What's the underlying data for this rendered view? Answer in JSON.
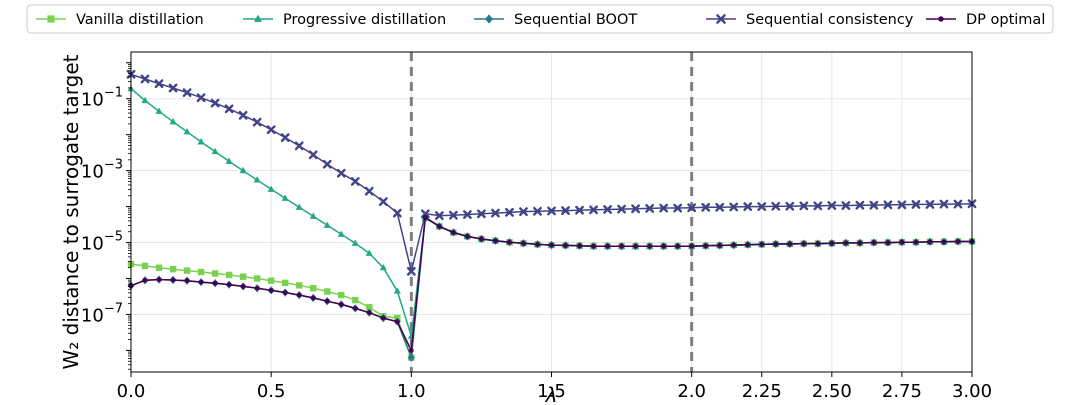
{
  "chart_data": {
    "type": "line",
    "title": "",
    "xlabel": "λ",
    "ylabel": "W₂ distance to surrogate target",
    "xlim": [
      0,
      3.0
    ],
    "ylim_log10": [
      -8.6,
      0.3
    ],
    "y_scale": "log",
    "x_scale": "piecewise-linear",
    "x_ticks": [
      "0.0",
      "0.5",
      "1.0",
      "1.5",
      "2.0",
      "2.25",
      "2.50",
      "2.75",
      "3.00"
    ],
    "x_tick_values": [
      0.0,
      0.5,
      1.0,
      1.5,
      2.0,
      2.25,
      2.5,
      2.75,
      3.0
    ],
    "y_ticks": [
      {
        "base": "10",
        "exp": "−1",
        "value": -1
      },
      {
        "base": "10",
        "exp": "−3",
        "value": -3
      },
      {
        "base": "10",
        "exp": "−5",
        "value": -5
      },
      {
        "base": "10",
        "exp": "−7",
        "value": -7
      }
    ],
    "vlines": [
      1.0,
      2.0
    ],
    "grid": true,
    "legend_position": "top",
    "series": [
      {
        "name": "Vanilla distillation",
        "color": "#7ad151",
        "marker": "square",
        "x": [
          0.0,
          0.05,
          0.1,
          0.15,
          0.2,
          0.25,
          0.3,
          0.35,
          0.4,
          0.45,
          0.5,
          0.55,
          0.6,
          0.65,
          0.7,
          0.75,
          0.8,
          0.85,
          0.9,
          0.95,
          1.0,
          1.05,
          1.1,
          1.15,
          1.2,
          1.25,
          1.3,
          1.35,
          1.4,
          1.45,
          1.5,
          1.55,
          1.6,
          1.65,
          1.7,
          1.75,
          1.8,
          1.85,
          1.9,
          1.95,
          2.0,
          2.05,
          2.1,
          2.15,
          2.2,
          2.25,
          2.3,
          2.35,
          2.4,
          2.45,
          2.5,
          2.55,
          2.6,
          2.65,
          2.7,
          2.75,
          2.8,
          2.85,
          2.9,
          2.95,
          3.0
        ],
        "y_log10": [
          -5.6,
          -5.65,
          -5.7,
          -5.74,
          -5.78,
          -5.82,
          -5.86,
          -5.9,
          -5.95,
          -6.0,
          -6.06,
          -6.12,
          -6.19,
          -6.27,
          -6.36,
          -6.46,
          -6.6,
          -6.8,
          -7.05,
          -7.1,
          -8.2,
          -4.32,
          -4.55,
          -4.72,
          -4.83,
          -4.9,
          -4.95,
          -4.99,
          -5.02,
          -5.05,
          -5.07,
          -5.08,
          -5.09,
          -5.1,
          -5.1,
          -5.1,
          -5.1,
          -5.1,
          -5.1,
          -5.1,
          -5.1,
          -5.09,
          -5.08,
          -5.07,
          -5.06,
          -5.05,
          -5.04,
          -5.04,
          -5.03,
          -5.03,
          -5.02,
          -5.01,
          -5.01,
          -5.0,
          -5.0,
          -4.99,
          -4.99,
          -4.98,
          -4.98,
          -4.97,
          -4.97
        ]
      },
      {
        "name": "Progressive distillation",
        "color": "#22a884",
        "marker": "triangle",
        "x": [
          0.0,
          0.05,
          0.1,
          0.15,
          0.2,
          0.25,
          0.3,
          0.35,
          0.4,
          0.45,
          0.5,
          0.55,
          0.6,
          0.65,
          0.7,
          0.75,
          0.8,
          0.85,
          0.9,
          0.95,
          1.0,
          1.05,
          1.1,
          1.15,
          1.2,
          1.25,
          1.3,
          1.35,
          1.4,
          1.45,
          1.5,
          1.55,
          1.6,
          1.65,
          1.7,
          1.75,
          1.8,
          1.85,
          1.9,
          1.95,
          2.0,
          2.05,
          2.1,
          2.15,
          2.2,
          2.25,
          2.3,
          2.35,
          2.4,
          2.45,
          2.5,
          2.55,
          2.6,
          2.65,
          2.7,
          2.75,
          2.8,
          2.85,
          2.9,
          2.95,
          3.0
        ],
        "y_log10": [
          -0.72,
          -1.05,
          -1.35,
          -1.64,
          -1.92,
          -2.2,
          -2.47,
          -2.74,
          -3.0,
          -3.26,
          -3.52,
          -3.77,
          -4.02,
          -4.27,
          -4.52,
          -4.77,
          -5.02,
          -5.3,
          -5.7,
          -6.35,
          -7.6,
          -4.32,
          -4.55,
          -4.72,
          -4.83,
          -4.9,
          -4.95,
          -4.99,
          -5.02,
          -5.05,
          -5.07,
          -5.08,
          -5.09,
          -5.1,
          -5.1,
          -5.1,
          -5.1,
          -5.1,
          -5.1,
          -5.1,
          -5.1,
          -5.09,
          -5.08,
          -5.07,
          -5.06,
          -5.05,
          -5.04,
          -5.04,
          -5.03,
          -5.03,
          -5.02,
          -5.01,
          -5.01,
          -5.0,
          -5.0,
          -4.99,
          -4.99,
          -4.98,
          -4.98,
          -4.97,
          -4.97
        ]
      },
      {
        "name": "Sequential BOOT",
        "color": "#2a788e",
        "marker": "diamond",
        "x": [
          0.0,
          0.05,
          0.1,
          0.15,
          0.2,
          0.25,
          0.3,
          0.35,
          0.4,
          0.45,
          0.5,
          0.55,
          0.6,
          0.65,
          0.7,
          0.75,
          0.8,
          0.85,
          0.9,
          0.95,
          1.0,
          1.05,
          1.1,
          1.15,
          1.2,
          1.25,
          1.3,
          1.35,
          1.4,
          1.45,
          1.5,
          1.55,
          1.6,
          1.65,
          1.7,
          1.75,
          1.8,
          1.85,
          1.9,
          1.95,
          2.0,
          2.05,
          2.1,
          2.15,
          2.2,
          2.25,
          2.3,
          2.35,
          2.4,
          2.45,
          2.5,
          2.55,
          2.6,
          2.65,
          2.7,
          2.75,
          2.8,
          2.85,
          2.9,
          2.95,
          3.0
        ],
        "y_log10": [
          -6.2,
          -6.05,
          -6.03,
          -6.04,
          -6.06,
          -6.1,
          -6.13,
          -6.17,
          -6.22,
          -6.27,
          -6.33,
          -6.39,
          -6.46,
          -6.54,
          -6.63,
          -6.72,
          -6.83,
          -6.95,
          -7.1,
          -7.2,
          -8.2,
          -4.3,
          -4.55,
          -4.72,
          -4.83,
          -4.9,
          -4.95,
          -4.99,
          -5.02,
          -5.05,
          -5.07,
          -5.08,
          -5.09,
          -5.1,
          -5.1,
          -5.1,
          -5.1,
          -5.1,
          -5.1,
          -5.1,
          -5.1,
          -5.09,
          -5.08,
          -5.07,
          -5.06,
          -5.05,
          -5.04,
          -5.04,
          -5.03,
          -5.03,
          -5.02,
          -5.01,
          -5.01,
          -5.0,
          -5.0,
          -4.99,
          -4.99,
          -4.98,
          -4.98,
          -4.97,
          -4.97
        ]
      },
      {
        "name": "Sequential consistency",
        "color": "#414487",
        "marker": "x",
        "x": [
          0.0,
          0.05,
          0.1,
          0.15,
          0.2,
          0.25,
          0.3,
          0.35,
          0.4,
          0.45,
          0.5,
          0.55,
          0.6,
          0.65,
          0.7,
          0.75,
          0.8,
          0.85,
          0.9,
          0.95,
          1.0,
          1.05,
          1.1,
          1.15,
          1.2,
          1.25,
          1.3,
          1.35,
          1.4,
          1.45,
          1.5,
          1.55,
          1.6,
          1.65,
          1.7,
          1.75,
          1.8,
          1.85,
          1.9,
          1.95,
          2.0,
          2.05,
          2.1,
          2.15,
          2.2,
          2.25,
          2.3,
          2.35,
          2.4,
          2.45,
          2.5,
          2.55,
          2.6,
          2.65,
          2.7,
          2.75,
          2.8,
          2.85,
          2.9,
          2.95,
          3.0
        ],
        "y_log10": [
          -0.32,
          -0.45,
          -0.58,
          -0.7,
          -0.83,
          -0.97,
          -1.12,
          -1.28,
          -1.46,
          -1.65,
          -1.86,
          -2.08,
          -2.31,
          -2.56,
          -2.82,
          -3.07,
          -3.3,
          -3.57,
          -3.86,
          -4.18,
          -5.8,
          -4.2,
          -4.25,
          -4.24,
          -4.22,
          -4.2,
          -4.18,
          -4.16,
          -4.14,
          -4.13,
          -4.12,
          -4.11,
          -4.1,
          -4.09,
          -4.08,
          -4.07,
          -4.06,
          -4.05,
          -4.04,
          -4.04,
          -4.03,
          -4.02,
          -4.02,
          -4.01,
          -4.0,
          -4.0,
          -3.99,
          -3.99,
          -3.98,
          -3.98,
          -3.97,
          -3.97,
          -3.96,
          -3.96,
          -3.95,
          -3.95,
          -3.94,
          -3.94,
          -3.93,
          -3.93,
          -3.92
        ]
      },
      {
        "name": "DP optimal",
        "color": "#440154",
        "marker": "dot",
        "x": [
          0.0,
          0.05,
          0.1,
          0.15,
          0.2,
          0.25,
          0.3,
          0.35,
          0.4,
          0.45,
          0.5,
          0.55,
          0.6,
          0.65,
          0.7,
          0.75,
          0.8,
          0.85,
          0.9,
          0.95,
          1.0,
          1.05,
          1.1,
          1.15,
          1.2,
          1.25,
          1.3,
          1.35,
          1.4,
          1.45,
          1.5,
          1.55,
          1.6,
          1.65,
          1.7,
          1.75,
          1.8,
          1.85,
          1.9,
          1.95,
          2.0,
          2.05,
          2.1,
          2.15,
          2.2,
          2.25,
          2.3,
          2.35,
          2.4,
          2.45,
          2.5,
          2.55,
          2.6,
          2.65,
          2.7,
          2.75,
          2.8,
          2.85,
          2.9,
          2.95,
          3.0
        ],
        "y_log10": [
          -6.2,
          -6.05,
          -6.03,
          -6.04,
          -6.06,
          -6.1,
          -6.13,
          -6.17,
          -6.22,
          -6.27,
          -6.33,
          -6.39,
          -6.46,
          -6.54,
          -6.63,
          -6.72,
          -6.83,
          -6.95,
          -7.1,
          -7.2,
          -8.0,
          -4.3,
          -4.55,
          -4.72,
          -4.83,
          -4.9,
          -4.95,
          -4.99,
          -5.02,
          -5.05,
          -5.07,
          -5.08,
          -5.09,
          -5.1,
          -5.1,
          -5.1,
          -5.1,
          -5.1,
          -5.1,
          -5.1,
          -5.1,
          -5.09,
          -5.08,
          -5.07,
          -5.06,
          -5.05,
          -5.04,
          -5.04,
          -5.03,
          -5.03,
          -5.02,
          -5.01,
          -5.01,
          -5.0,
          -5.0,
          -4.99,
          -4.99,
          -4.98,
          -4.98,
          -4.97,
          -4.97
        ]
      }
    ]
  }
}
